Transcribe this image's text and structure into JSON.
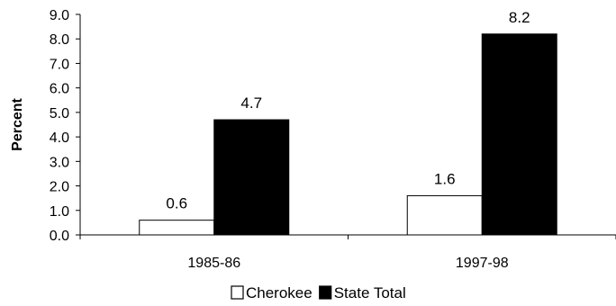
{
  "chart_data": {
    "type": "bar",
    "categories": [
      "1985-86",
      "1997-98"
    ],
    "series": [
      {
        "name": "Cherokee",
        "values": [
          0.6,
          1.6
        ],
        "color": "#ffffff",
        "stroke": "#000000"
      },
      {
        "name": "State Total",
        "values": [
          4.7,
          8.2
        ],
        "color": "#000000",
        "stroke": "#000000"
      }
    ],
    "title": "",
    "xlabel": "",
    "ylabel": "Percent",
    "ylim": [
      0,
      9.0
    ],
    "yticks": [
      "0.0",
      "1.0",
      "2.0",
      "3.0",
      "4.0",
      "5.0",
      "6.0",
      "7.0",
      "8.0",
      "9.0"
    ],
    "data_labels": [
      [
        "0.6",
        "1.6"
      ],
      [
        "4.7",
        "8.2"
      ]
    ],
    "grid": false,
    "legend_position": "bottom"
  }
}
